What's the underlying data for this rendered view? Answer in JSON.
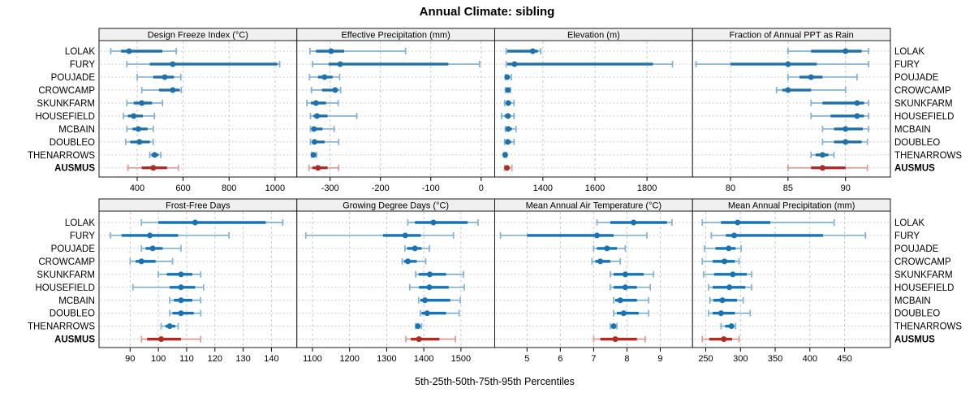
{
  "title": "Annual Climate: sibling",
  "xlabel": "5th-25th-50th-75th-95th Percentiles",
  "sites": [
    "LOLAK",
    "FURY",
    "POUJADE",
    "CROWCAMP",
    "SKUNKFARM",
    "HOUSEFIELD",
    "MCBAIN",
    "DOUBLEO",
    "THENARROWS",
    "AUSMUS"
  ],
  "highlight_site": "AUSMUS",
  "colors": {
    "blue": "#1a72b2",
    "blue_light": "#7fb2d8",
    "red": "#b12b24",
    "red_light": "#db9a93",
    "grid_vertical": "#c9c9c9",
    "grid_horizontal": "#bfbfbf",
    "panel_border": "#1a1a1a",
    "header_bg": "#f0f0f0",
    "text": "#000000"
  },
  "chart_data": {
    "type": "scatter",
    "subtype": "percentile-dotplot",
    "percentiles": [
      5,
      25,
      50,
      75,
      95
    ],
    "legend_note": "each row: thin line 5th-95th with end caps, thick line 25th-75th, dot at 50th; AUSMUS drawn in red",
    "rows_order": [
      "LOLAK",
      "FURY",
      "POUJADE",
      "CROWCAMP",
      "SKUNKFARM",
      "HOUSEFIELD",
      "MCBAIN",
      "DOUBLEO",
      "THENARROWS",
      "AUSMUS"
    ],
    "panels": [
      {
        "title": "Design Freeze Index (°C)",
        "grid_row": 0,
        "grid_col": 0,
        "xlim": [
          234,
          1095
        ],
        "ticks": [
          400,
          600,
          800,
          1000
        ],
        "values": [
          [
            285,
            330,
            365,
            510,
            570
          ],
          [
            355,
            455,
            555,
            1010,
            1020
          ],
          [
            400,
            470,
            520,
            560,
            590
          ],
          [
            420,
            495,
            555,
            585,
            592
          ],
          [
            355,
            385,
            420,
            465,
            510
          ],
          [
            340,
            360,
            385,
            425,
            475
          ],
          [
            355,
            380,
            405,
            445,
            470
          ],
          [
            350,
            370,
            410,
            455,
            470
          ],
          [
            455,
            462,
            476,
            492,
            503
          ],
          [
            360,
            420,
            470,
            530,
            580
          ]
        ]
      },
      {
        "title": "Effective Precipitation (mm)",
        "grid_row": 0,
        "grid_col": 1,
        "xlim": [
          -366,
          27
        ],
        "ticks": [
          -300,
          -200,
          -100,
          0
        ],
        "values": [
          [
            -340,
            -328,
            -298,
            -272,
            -150
          ],
          [
            -335,
            -303,
            -280,
            -65,
            -3
          ],
          [
            -341,
            -324,
            -311,
            -295,
            -281
          ],
          [
            -337,
            -316,
            -290,
            -284,
            -279
          ],
          [
            -346,
            -338,
            -328,
            -308,
            -284
          ],
          [
            -339,
            -333,
            -326,
            -305,
            -247
          ],
          [
            -339,
            -336,
            -332,
            -315,
            -292
          ],
          [
            -339,
            -335,
            -331,
            -311,
            -283
          ],
          [
            -337,
            -335,
            -333,
            -330,
            -327
          ],
          [
            -342,
            -335,
            -324,
            -305,
            -283
          ]
        ]
      },
      {
        "title": "Elevation (m)",
        "grid_row": 0,
        "grid_col": 2,
        "xlim": [
          1215,
          1975
        ],
        "ticks": [
          1400,
          1600,
          1800
        ],
        "values": [
          [
            1259,
            1263,
            1361,
            1381,
            1392
          ],
          [
            1259,
            1263,
            1291,
            1823,
            1898
          ],
          [
            1256,
            1259,
            1263,
            1270,
            1279
          ],
          [
            1256,
            1260,
            1266,
            1271,
            1275
          ],
          [
            1253,
            1258,
            1267,
            1276,
            1289
          ],
          [
            1241,
            1253,
            1266,
            1276,
            1289
          ],
          [
            1256,
            1260,
            1267,
            1281,
            1297
          ],
          [
            1253,
            1258,
            1265,
            1278,
            1289
          ],
          [
            1251,
            1253,
            1255,
            1258,
            1261
          ],
          [
            1253,
            1256,
            1262,
            1268,
            1281
          ]
        ]
      },
      {
        "title": "Fraction of Annual PPT as Rain",
        "grid_row": 0,
        "grid_col": 3,
        "xlim": [
          76.7,
          93.9
        ],
        "ticks": [
          80,
          85,
          90
        ],
        "values": [
          [
            85,
            87,
            90,
            91.4,
            92
          ],
          [
            77,
            80,
            85,
            87.5,
            92
          ],
          [
            85,
            86,
            87,
            88,
            91
          ],
          [
            84,
            84.5,
            85,
            87,
            90
          ],
          [
            87,
            88,
            91,
            91.6,
            92
          ],
          [
            87,
            88.7,
            91,
            91.6,
            92
          ],
          [
            88,
            89,
            90,
            91.5,
            92
          ],
          [
            88,
            89,
            90,
            91.4,
            91.9
          ],
          [
            87,
            87.4,
            88,
            88.5,
            89
          ],
          [
            85,
            87,
            88,
            90,
            91.9
          ]
        ]
      },
      {
        "title": "Frost-Free Days",
        "grid_row": 1,
        "grid_col": 0,
        "xlim": [
          79,
          149
        ],
        "ticks": [
          90,
          100,
          110,
          120,
          130,
          140
        ],
        "values": [
          [
            94,
            100,
            113,
            138,
            144
          ],
          [
            83,
            87,
            97,
            107,
            125
          ],
          [
            94,
            95.5,
            98,
            101.5,
            108
          ],
          [
            90,
            92,
            94,
            99,
            105
          ],
          [
            100,
            103,
            108,
            112,
            115
          ],
          [
            91,
            104,
            108,
            113,
            116
          ],
          [
            104,
            105.5,
            108,
            112,
            115
          ],
          [
            104,
            105,
            108,
            112.5,
            115
          ],
          [
            101,
            102.5,
            104,
            106,
            107
          ],
          [
            94,
            96,
            101,
            108,
            115
          ]
        ]
      },
      {
        "title": "Growing Degree Days (°C)",
        "grid_row": 1,
        "grid_col": 1,
        "xlim": [
          1058,
          1591
        ],
        "ticks": [
          1100,
          1200,
          1300,
          1400,
          1500
        ],
        "values": [
          [
            1357,
            1376,
            1426,
            1518,
            1546
          ],
          [
            1082,
            1290,
            1350,
            1392,
            1480
          ],
          [
            1349,
            1355,
            1376,
            1394,
            1415
          ],
          [
            1342,
            1347,
            1357,
            1381,
            1405
          ],
          [
            1378,
            1386,
            1416,
            1460,
            1507
          ],
          [
            1362,
            1387,
            1415,
            1467,
            1509
          ],
          [
            1386,
            1391,
            1403,
            1471,
            1498
          ],
          [
            1391,
            1394,
            1409,
            1460,
            1495
          ],
          [
            1378,
            1381,
            1384,
            1390,
            1394
          ],
          [
            1352,
            1365,
            1387,
            1442,
            1485
          ]
        ]
      },
      {
        "title": "Mean Annual Air Temperature (°C)",
        "grid_row": 1,
        "grid_col": 2,
        "xlim": [
          4.03,
          9.97
        ],
        "ticks": [
          5,
          6,
          7,
          8,
          9
        ],
        "values": [
          [
            7.1,
            7.5,
            8.2,
            9.2,
            9.35
          ],
          [
            4.2,
            5.0,
            7.1,
            7.6,
            8.6
          ],
          [
            7.0,
            7.1,
            7.4,
            7.7,
            7.95
          ],
          [
            6.95,
            7.05,
            7.2,
            7.5,
            7.8
          ],
          [
            7.5,
            7.6,
            7.95,
            8.5,
            8.8
          ],
          [
            7.5,
            7.6,
            7.95,
            8.3,
            8.7
          ],
          [
            7.6,
            7.65,
            7.8,
            8.3,
            8.65
          ],
          [
            7.6,
            7.7,
            7.9,
            8.35,
            8.65
          ],
          [
            7.5,
            7.55,
            7.6,
            7.65,
            7.7
          ],
          [
            7.0,
            7.2,
            7.65,
            8.3,
            8.55
          ]
        ]
      },
      {
        "title": "Mean Annual Precipitation (mm)",
        "grid_row": 1,
        "grid_col": 3,
        "xlim": [
          231,
          516
        ],
        "ticks": [
          250,
          300,
          350,
          400,
          450
        ],
        "values": [
          [
            245,
            272,
            296,
            343,
            435
          ],
          [
            258,
            279,
            291,
            419,
            480
          ],
          [
            248,
            264,
            283,
            293,
            301
          ],
          [
            245,
            260,
            277,
            292,
            298
          ],
          [
            247,
            262,
            289,
            309,
            316
          ],
          [
            254,
            260,
            284,
            307,
            316
          ],
          [
            256,
            261,
            274,
            295,
            304
          ],
          [
            254,
            260,
            272,
            292,
            314
          ],
          [
            272,
            278,
            287,
            291,
            293
          ],
          [
            245,
            255,
            276,
            288,
            298
          ]
        ]
      }
    ]
  }
}
